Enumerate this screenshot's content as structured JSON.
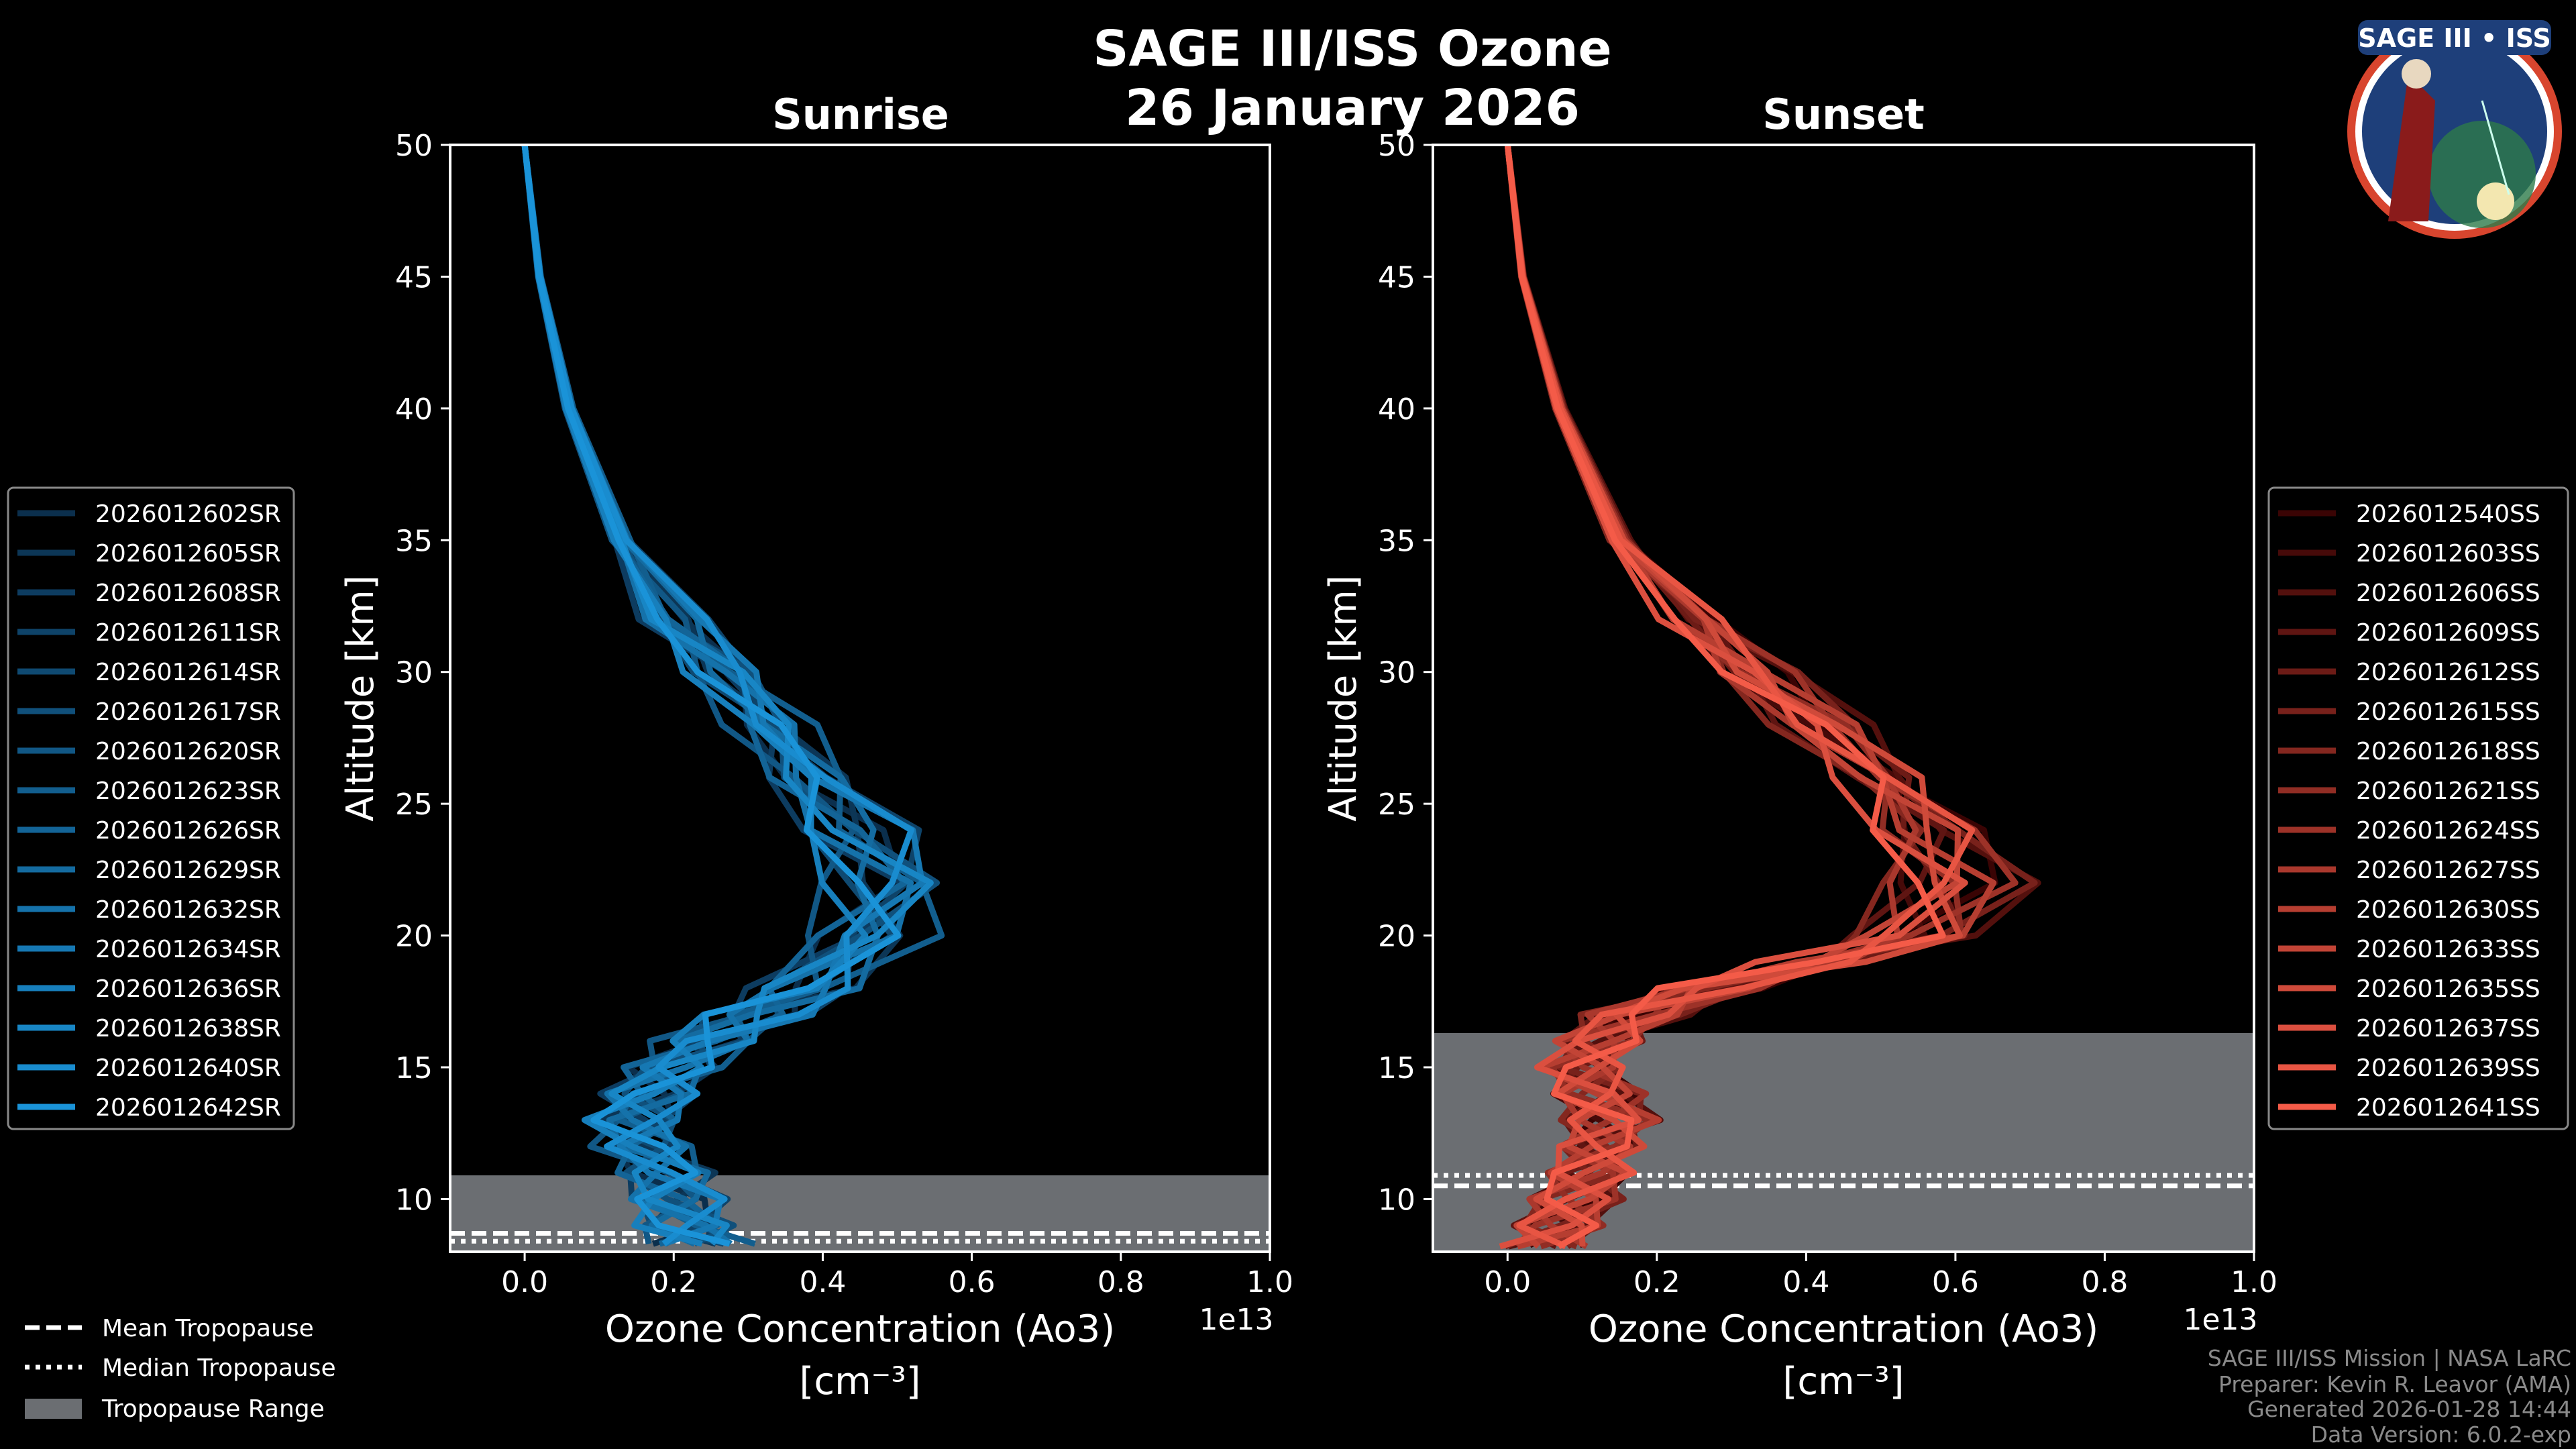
{
  "title": "SAGE III/ISS Ozone",
  "date": "26 January 2026",
  "logo_text": "SAGE III • ISS",
  "footer": [
    "SAGE III/ISS Mission | NASA LaRC",
    "Preparer: Kevin R. Leavor (AMA)",
    "Generated 2026-01-28 14:44",
    "Data Version: 6.0.2-exp"
  ],
  "tropo_legend": {
    "mean": "Mean Tropopause",
    "median": "Median Tropopause",
    "range": "Tropopause Range"
  },
  "colors": {
    "background": "#000000",
    "tropopause_range": "#6b6e72",
    "sunrise_dark": "#0b2f4d",
    "sunrise_light": "#1a93d8",
    "sunset_dark": "#3a0404",
    "sunset_light": "#f45b48"
  },
  "chart_data": [
    {
      "type": "line",
      "title": "Sunrise",
      "xlabel": "Ozone Concentration (Ao3)",
      "xlabel2": "[cm⁻³]",
      "ylabel": "Altitude [km]",
      "x_multiplier": "1e13",
      "xlim": [
        -0.1,
        1.0
      ],
      "ylim": [
        8,
        50
      ],
      "xticks": [
        "0.0",
        "0.2",
        "0.4",
        "0.6",
        "0.8",
        "1.0"
      ],
      "yticks": [
        "10",
        "15",
        "20",
        "25",
        "30",
        "35",
        "40",
        "45",
        "50"
      ],
      "tropopause": {
        "mean": 8.7,
        "median": 8.4,
        "range": [
          8,
          10.9
        ]
      },
      "altitudes": [
        50,
        45,
        40,
        35,
        32,
        30,
        28,
        26,
        24,
        22,
        20,
        18,
        17,
        16,
        15,
        14,
        13,
        12,
        11,
        10,
        9,
        8.3
      ],
      "base_profile": [
        0.0,
        0.02,
        0.06,
        0.13,
        0.2,
        0.27,
        0.33,
        0.38,
        0.44,
        0.49,
        0.46,
        0.38,
        0.31,
        0.25,
        0.2,
        0.17,
        0.15,
        0.16,
        0.19,
        0.2,
        0.22,
        0.23
      ],
      "series": [
        {
          "name": "2026012602SR",
          "scale": 0.98
        },
        {
          "name": "2026012605SR",
          "scale": 1.04
        },
        {
          "name": "2026012608SR",
          "scale": 0.93
        },
        {
          "name": "2026012611SR",
          "scale": 1.07
        },
        {
          "name": "2026012614SR",
          "scale": 0.96
        },
        {
          "name": "2026012617SR",
          "scale": 1.01
        },
        {
          "name": "2026012620SR",
          "scale": 0.9
        },
        {
          "name": "2026012623SR",
          "scale": 1.09
        },
        {
          "name": "2026012626SR",
          "scale": 0.95
        },
        {
          "name": "2026012629SR",
          "scale": 1.03
        },
        {
          "name": "2026012632SR",
          "scale": 0.99
        },
        {
          "name": "2026012634SR",
          "scale": 1.06
        },
        {
          "name": "2026012636SR",
          "scale": 0.92
        },
        {
          "name": "2026012638SR",
          "scale": 1.0
        },
        {
          "name": "2026012640SR",
          "scale": 1.05
        },
        {
          "name": "2026012642SR",
          "scale": 0.97
        }
      ]
    },
    {
      "type": "line",
      "title": "Sunset",
      "xlabel": "Ozone Concentration (Ao3)",
      "xlabel2": "[cm⁻³]",
      "ylabel": "Altitude [km]",
      "x_multiplier": "1e13",
      "xlim": [
        -0.1,
        1.0
      ],
      "ylim": [
        8,
        50
      ],
      "xticks": [
        "0.0",
        "0.2",
        "0.4",
        "0.6",
        "0.8",
        "1.0"
      ],
      "yticks": [
        "10",
        "15",
        "20",
        "25",
        "30",
        "35",
        "40",
        "45",
        "50"
      ],
      "tropopause": {
        "mean": 10.5,
        "median": 10.9,
        "range": [
          8,
          16.3
        ]
      },
      "altitudes": [
        50,
        45,
        40,
        35,
        32,
        30,
        28,
        26,
        24,
        22,
        20,
        19,
        18,
        17,
        16,
        15,
        14,
        13,
        12,
        11,
        10,
        9,
        8.2
      ],
      "base_profile": [
        0.0,
        0.02,
        0.07,
        0.15,
        0.25,
        0.33,
        0.42,
        0.5,
        0.56,
        0.6,
        0.55,
        0.42,
        0.27,
        0.17,
        0.12,
        0.1,
        0.12,
        0.14,
        0.12,
        0.11,
        0.09,
        0.07,
        0.05
      ],
      "series": [
        {
          "name": "2026012540SS",
          "scale": 1.05
        },
        {
          "name": "2026012603SS",
          "scale": 0.97
        },
        {
          "name": "2026012606SS",
          "scale": 1.1
        },
        {
          "name": "2026012609SS",
          "scale": 0.94
        },
        {
          "name": "2026012612SS",
          "scale": 1.02
        },
        {
          "name": "2026012615SS",
          "scale": 1.08
        },
        {
          "name": "2026012618SS",
          "scale": 0.91
        },
        {
          "name": "2026012621SS",
          "scale": 1.0
        },
        {
          "name": "2026012624SS",
          "scale": 1.06
        },
        {
          "name": "2026012627SS",
          "scale": 0.95
        },
        {
          "name": "2026012630SS",
          "scale": 1.03
        },
        {
          "name": "2026012633SS",
          "scale": 0.98
        },
        {
          "name": "2026012635SS",
          "scale": 1.04
        },
        {
          "name": "2026012637SS",
          "scale": 0.93
        },
        {
          "name": "2026012639SS",
          "scale": 1.01
        },
        {
          "name": "2026012641SS",
          "scale": 0.96
        }
      ]
    }
  ]
}
